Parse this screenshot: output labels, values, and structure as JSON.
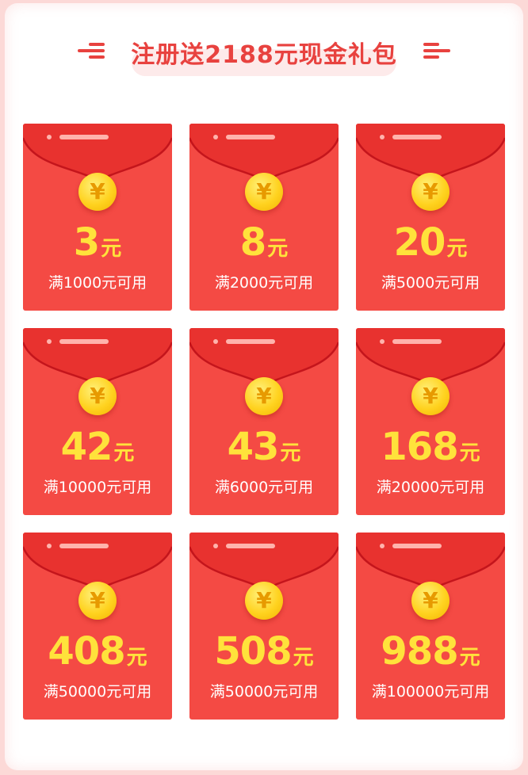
{
  "header": {
    "title": "注册送2188元现金礼包"
  },
  "colors": {
    "card": "#f44a44",
    "amount": "#ffe23b",
    "title": "#e8423f"
  },
  "coin_symbol": "¥",
  "coupons": [
    {
      "amount": "3",
      "unit": "元",
      "condition": "满1000元可用"
    },
    {
      "amount": "8",
      "unit": "元",
      "condition": "满2000元可用"
    },
    {
      "amount": "20",
      "unit": "元",
      "condition": "满5000元可用"
    },
    {
      "amount": "42",
      "unit": "元",
      "condition": "满10000元可用"
    },
    {
      "amount": "43",
      "unit": "元",
      "condition": "满6000元可用"
    },
    {
      "amount": "168",
      "unit": "元",
      "condition": "满20000元可用"
    },
    {
      "amount": "408",
      "unit": "元",
      "condition": "满50000元可用"
    },
    {
      "amount": "508",
      "unit": "元",
      "condition": "满50000元可用"
    },
    {
      "amount": "988",
      "unit": "元",
      "condition": "满100000元可用"
    }
  ]
}
